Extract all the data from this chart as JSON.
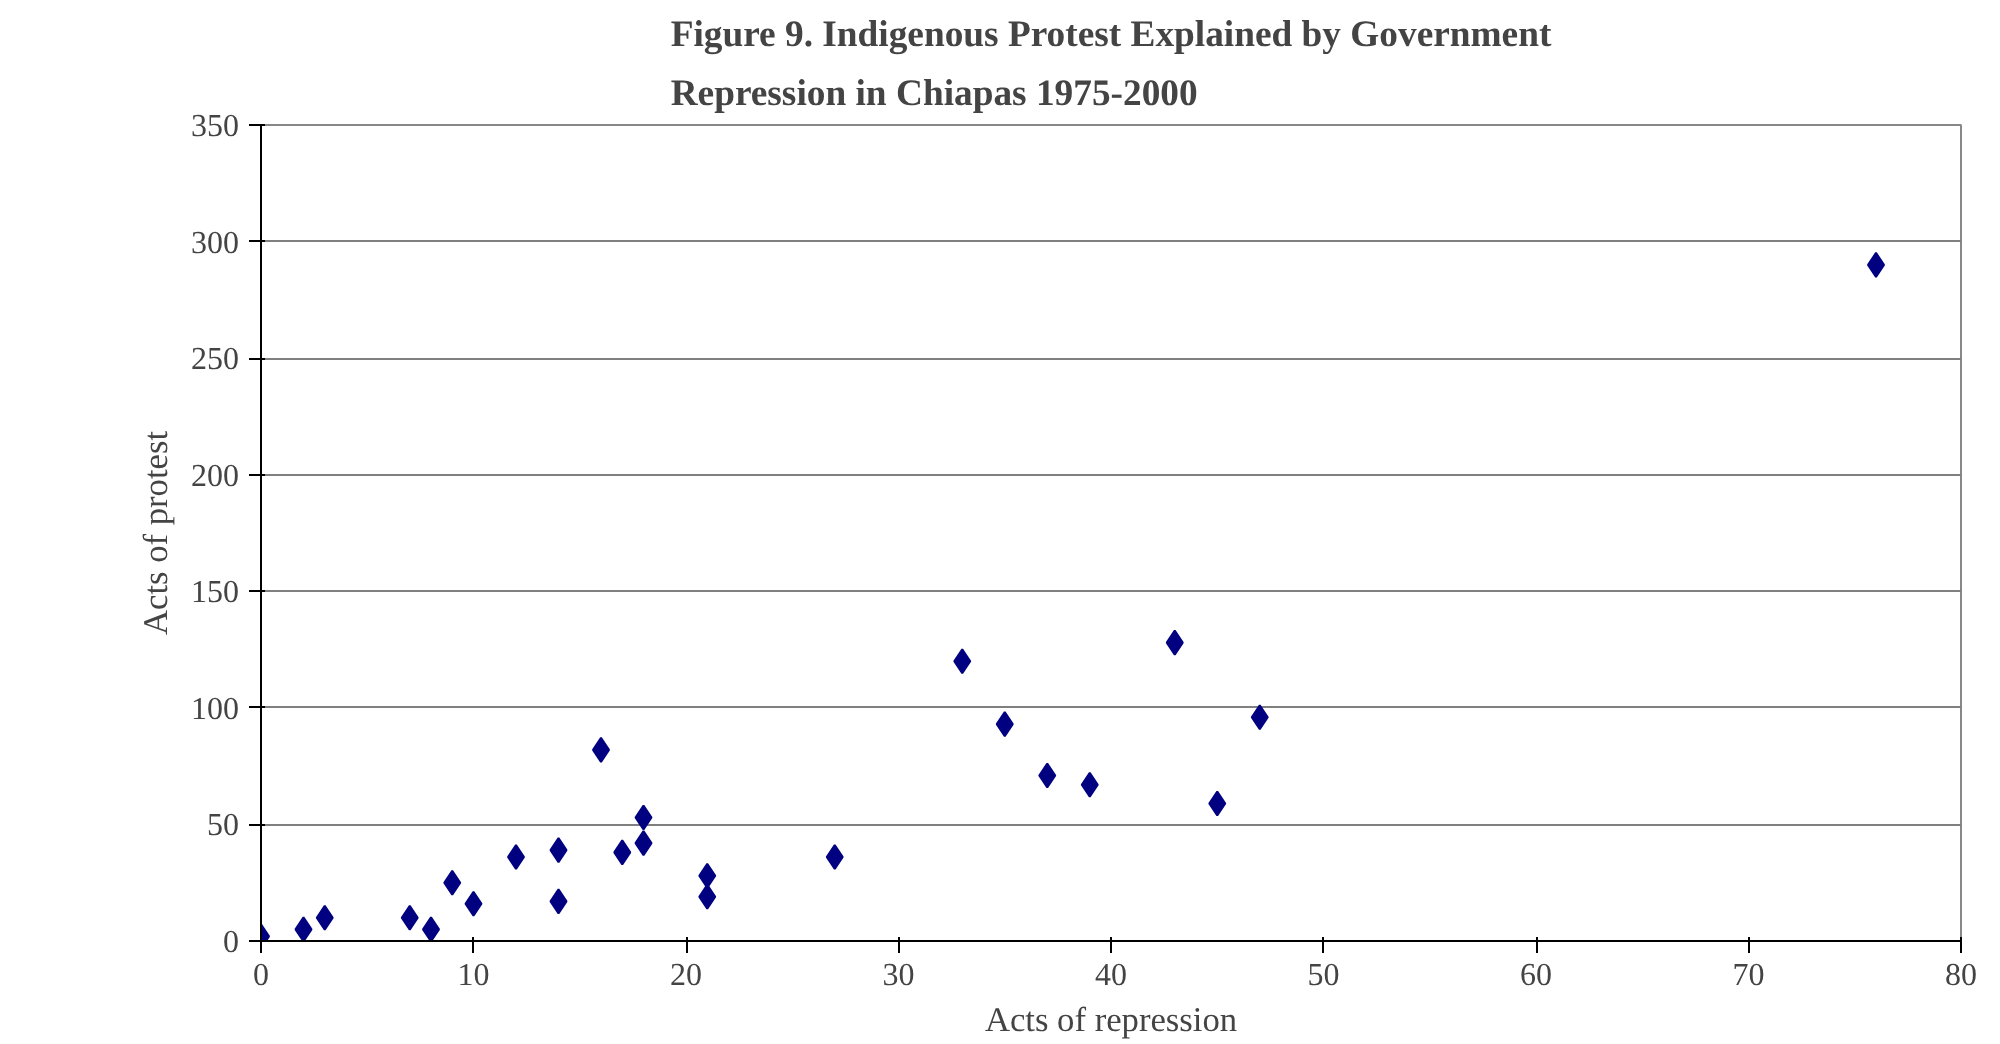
{
  "chart_data": {
    "type": "scatter",
    "title": "Figure 9. Indigenous Protest Explained by Government Repression in Chiapas 1975-2000",
    "xlabel": "Acts of repression",
    "ylabel": "Acts of protest",
    "x": [
      0,
      2,
      3,
      7,
      8,
      9,
      10,
      12,
      14,
      14,
      16,
      17,
      18,
      18,
      21,
      21,
      27,
      33,
      35,
      37,
      39,
      43,
      45,
      47,
      76
    ],
    "series": [
      {
        "color": "#000080",
        "values": [
          2,
          5,
          10,
          10,
          5,
          25,
          16,
          36,
          17,
          39,
          82,
          38,
          42,
          53,
          28,
          19,
          36,
          120,
          93,
          71,
          67,
          128,
          59,
          96,
          290
        ]
      }
    ],
    "xlim": [
      0,
      80
    ],
    "xticks": [
      0,
      10,
      20,
      30,
      40,
      50,
      60,
      70,
      80
    ],
    "ylim": [
      0,
      350
    ],
    "yticks": [
      0,
      50,
      100,
      150,
      200,
      250,
      300,
      350
    ],
    "grid": "y",
    "marker": "diamond"
  }
}
